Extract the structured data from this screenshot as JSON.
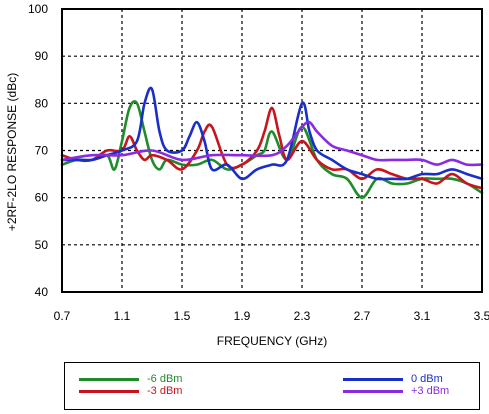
{
  "chart_data": {
    "type": "line",
    "title": "",
    "xlabel": "FREQUENCY (GHz)",
    "ylabel": "+2RF-2LO RESPONSE (dBc)",
    "xlim": [
      0.7,
      3.5
    ],
    "ylim": [
      40,
      100
    ],
    "xticks": [
      "0.7",
      "1.1",
      "1.5",
      "1.9",
      "2.3",
      "2.7",
      "3.1",
      "3.5"
    ],
    "yticks": [
      "40",
      "50",
      "60",
      "70",
      "80",
      "90",
      "100"
    ],
    "grid": true,
    "legend_position": "below",
    "series": [
      {
        "name": "-6 dBm",
        "color": "#1e8c2a",
        "x": [
          0.7,
          0.8,
          0.9,
          1.0,
          1.05,
          1.1,
          1.15,
          1.2,
          1.25,
          1.3,
          1.35,
          1.4,
          1.5,
          1.6,
          1.7,
          1.8,
          1.9,
          2.0,
          2.05,
          2.1,
          2.2,
          2.3,
          2.4,
          2.5,
          2.6,
          2.7,
          2.8,
          2.9,
          3.0,
          3.1,
          3.2,
          3.3,
          3.4,
          3.5
        ],
        "values": [
          67,
          68,
          68,
          69,
          66,
          72,
          79,
          80,
          74,
          68,
          66,
          68,
          67,
          67,
          68,
          66,
          67,
          69,
          70,
          74,
          68,
          75,
          68,
          65,
          64,
          60,
          64,
          63,
          63,
          64,
          64,
          64,
          63,
          61
        ]
      },
      {
        "name": "-3 dBm",
        "color": "#c8141e",
        "x": [
          0.7,
          0.8,
          0.9,
          1.0,
          1.1,
          1.15,
          1.2,
          1.25,
          1.3,
          1.4,
          1.5,
          1.6,
          1.65,
          1.7,
          1.8,
          1.9,
          2.0,
          2.05,
          2.1,
          2.15,
          2.2,
          2.3,
          2.4,
          2.5,
          2.6,
          2.7,
          2.8,
          2.9,
          3.0,
          3.1,
          3.2,
          3.3,
          3.4,
          3.5
        ],
        "values": [
          69,
          68,
          68,
          70,
          70,
          73,
          70,
          68,
          69,
          68,
          66,
          70,
          74,
          75,
          67,
          67,
          70,
          74,
          79,
          73,
          68,
          72,
          68,
          66,
          66,
          64,
          66,
          65,
          64,
          64,
          63,
          65,
          63,
          62
        ]
      },
      {
        "name": "0 dBm",
        "color": "#1a2ec8",
        "x": [
          0.7,
          0.8,
          0.9,
          1.0,
          1.1,
          1.2,
          1.25,
          1.3,
          1.35,
          1.4,
          1.5,
          1.55,
          1.6,
          1.65,
          1.7,
          1.8,
          1.9,
          2.0,
          2.1,
          2.2,
          2.3,
          2.35,
          2.4,
          2.5,
          2.6,
          2.7,
          2.8,
          2.9,
          3.0,
          3.1,
          3.2,
          3.3,
          3.4,
          3.5
        ],
        "values": [
          68,
          68,
          68,
          69,
          70,
          72,
          80,
          83,
          74,
          70,
          70,
          73,
          76,
          72,
          66,
          67,
          64,
          66,
          67,
          68,
          80,
          74,
          70,
          68,
          66,
          65,
          64,
          64,
          64,
          65,
          65,
          66,
          65,
          64
        ]
      },
      {
        "name": "+3 dBm",
        "color": "#8a2be2",
        "x": [
          0.7,
          0.9,
          1.1,
          1.3,
          1.5,
          1.7,
          1.9,
          2.1,
          2.2,
          2.3,
          2.35,
          2.4,
          2.5,
          2.6,
          2.7,
          2.8,
          2.9,
          3.0,
          3.1,
          3.2,
          3.3,
          3.4,
          3.5
        ],
        "values": [
          68,
          69,
          69,
          70,
          68,
          69,
          69,
          69,
          71,
          75,
          76,
          74,
          71,
          70,
          69,
          68,
          68,
          68,
          68,
          67,
          68,
          67,
          67
        ]
      }
    ]
  }
}
